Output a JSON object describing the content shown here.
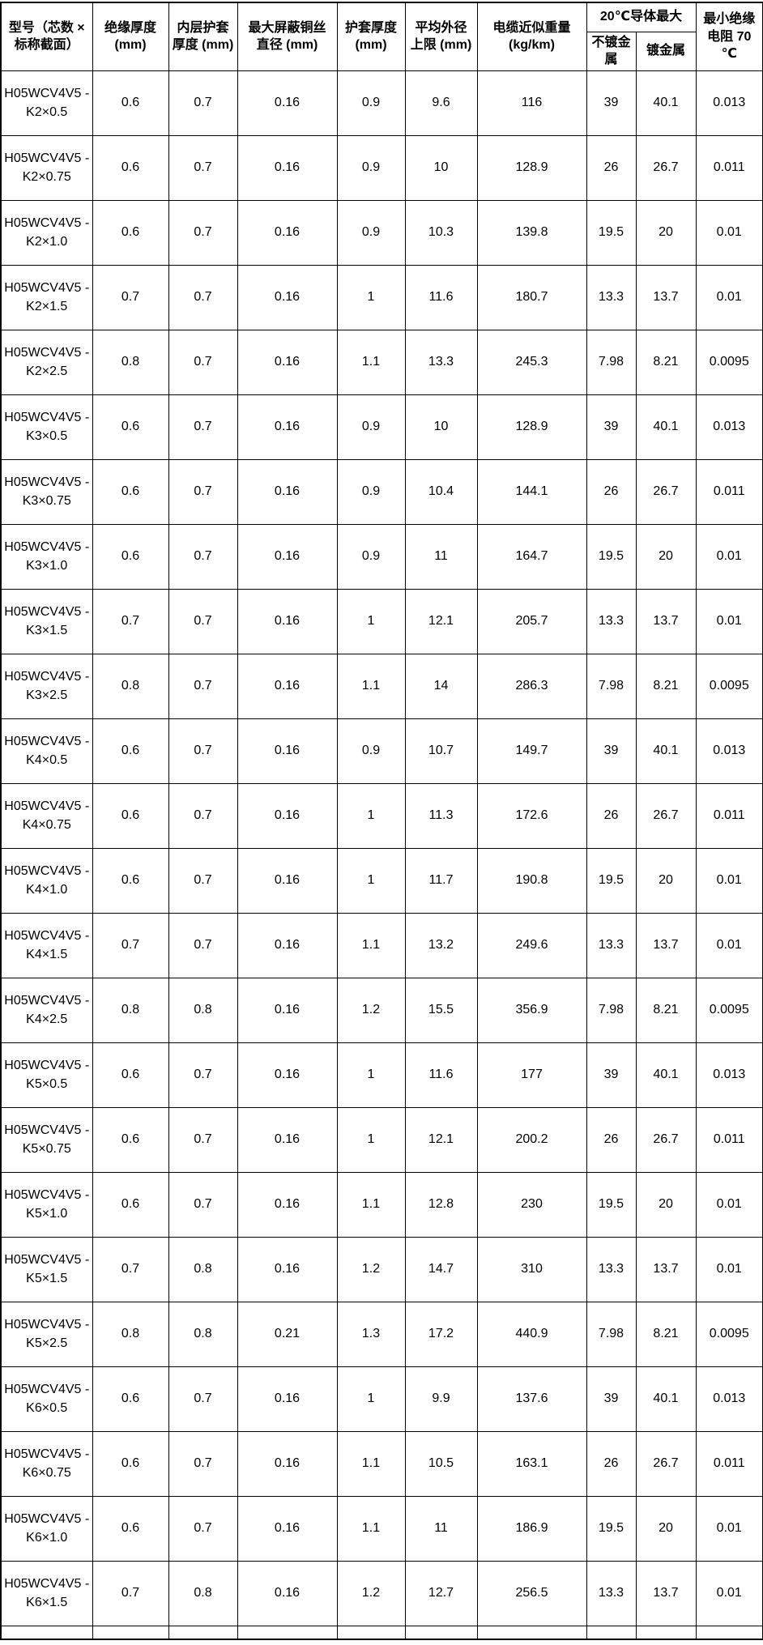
{
  "table": {
    "headers": {
      "model": "型号（芯数 × 标称截面）",
      "insulation": "绝缘厚度 (mm)",
      "inner_sheath": "内层护套 厚度 (mm)",
      "max_shield_wire": "最大屏蔽铜丝 直径 (mm)",
      "sheath": "护套厚度 (mm)",
      "avg_od": "平均外径 上限 (mm)",
      "weight": "电缆近似重量 (kg/km)",
      "conductor_group": "20℃导体最大",
      "unplated": "不镀金属",
      "plated": "镀金属",
      "min_resistance": "最小绝缘 电阻 70 ℃"
    },
    "field_order": [
      "model",
      "insulation",
      "inner_sheath",
      "max_shield_wire",
      "sheath",
      "avg_od",
      "weight",
      "unplated",
      "plated",
      "min_resistance"
    ],
    "rows": [
      {
        "model": "H05WCV4V5 - K2×0.5",
        "insulation": "0.6",
        "inner_sheath": "0.7",
        "max_shield_wire": "0.16",
        "sheath": "0.9",
        "avg_od": "9.6",
        "weight": "116",
        "unplated": "39",
        "plated": "40.1",
        "min_resistance": "0.013"
      },
      {
        "model": "H05WCV4V5 - K2×0.75",
        "insulation": "0.6",
        "inner_sheath": "0.7",
        "max_shield_wire": "0.16",
        "sheath": "0.9",
        "avg_od": "10",
        "weight": "128.9",
        "unplated": "26",
        "plated": "26.7",
        "min_resistance": "0.011"
      },
      {
        "model": "H05WCV4V5 - K2×1.0",
        "insulation": "0.6",
        "inner_sheath": "0.7",
        "max_shield_wire": "0.16",
        "sheath": "0.9",
        "avg_od": "10.3",
        "weight": "139.8",
        "unplated": "19.5",
        "plated": "20",
        "min_resistance": "0.01"
      },
      {
        "model": "H05WCV4V5 - K2×1.5",
        "insulation": "0.7",
        "inner_sheath": "0.7",
        "max_shield_wire": "0.16",
        "sheath": "1",
        "avg_od": "11.6",
        "weight": "180.7",
        "unplated": "13.3",
        "plated": "13.7",
        "min_resistance": "0.01"
      },
      {
        "model": "H05WCV4V5 - K2×2.5",
        "insulation": "0.8",
        "inner_sheath": "0.7",
        "max_shield_wire": "0.16",
        "sheath": "1.1",
        "avg_od": "13.3",
        "weight": "245.3",
        "unplated": "7.98",
        "plated": "8.21",
        "min_resistance": "0.0095"
      },
      {
        "model": "H05WCV4V5 - K3×0.5",
        "insulation": "0.6",
        "inner_sheath": "0.7",
        "max_shield_wire": "0.16",
        "sheath": "0.9",
        "avg_od": "10",
        "weight": "128.9",
        "unplated": "39",
        "plated": "40.1",
        "min_resistance": "0.013"
      },
      {
        "model": "H05WCV4V5 - K3×0.75",
        "insulation": "0.6",
        "inner_sheath": "0.7",
        "max_shield_wire": "0.16",
        "sheath": "0.9",
        "avg_od": "10.4",
        "weight": "144.1",
        "unplated": "26",
        "plated": "26.7",
        "min_resistance": "0.011"
      },
      {
        "model": "H05WCV4V5 - K3×1.0",
        "insulation": "0.6",
        "inner_sheath": "0.7",
        "max_shield_wire": "0.16",
        "sheath": "0.9",
        "avg_od": "11",
        "weight": "164.7",
        "unplated": "19.5",
        "plated": "20",
        "min_resistance": "0.01"
      },
      {
        "model": "H05WCV4V5 - K3×1.5",
        "insulation": "0.7",
        "inner_sheath": "0.7",
        "max_shield_wire": "0.16",
        "sheath": "1",
        "avg_od": "12.1",
        "weight": "205.7",
        "unplated": "13.3",
        "plated": "13.7",
        "min_resistance": "0.01"
      },
      {
        "model": "H05WCV4V5 - K3×2.5",
        "insulation": "0.8",
        "inner_sheath": "0.7",
        "max_shield_wire": "0.16",
        "sheath": "1.1",
        "avg_od": "14",
        "weight": "286.3",
        "unplated": "7.98",
        "plated": "8.21",
        "min_resistance": "0.0095"
      },
      {
        "model": "H05WCV4V5 - K4×0.5",
        "insulation": "0.6",
        "inner_sheath": "0.7",
        "max_shield_wire": "0.16",
        "sheath": "0.9",
        "avg_od": "10.7",
        "weight": "149.7",
        "unplated": "39",
        "plated": "40.1",
        "min_resistance": "0.013"
      },
      {
        "model": "H05WCV4V5 - K4×0.75",
        "insulation": "0.6",
        "inner_sheath": "0.7",
        "max_shield_wire": "0.16",
        "sheath": "1",
        "avg_od": "11.3",
        "weight": "172.6",
        "unplated": "26",
        "plated": "26.7",
        "min_resistance": "0.011"
      },
      {
        "model": "H05WCV4V5 - K4×1.0",
        "insulation": "0.6",
        "inner_sheath": "0.7",
        "max_shield_wire": "0.16",
        "sheath": "1",
        "avg_od": "11.7",
        "weight": "190.8",
        "unplated": "19.5",
        "plated": "20",
        "min_resistance": "0.01"
      },
      {
        "model": "H05WCV4V5 - K4×1.5",
        "insulation": "0.7",
        "inner_sheath": "0.7",
        "max_shield_wire": "0.16",
        "sheath": "1.1",
        "avg_od": "13.2",
        "weight": "249.6",
        "unplated": "13.3",
        "plated": "13.7",
        "min_resistance": "0.01"
      },
      {
        "model": "H05WCV4V5 - K4×2.5",
        "insulation": "0.8",
        "inner_sheath": "0.8",
        "max_shield_wire": "0.16",
        "sheath": "1.2",
        "avg_od": "15.5",
        "weight": "356.9",
        "unplated": "7.98",
        "plated": "8.21",
        "min_resistance": "0.0095"
      },
      {
        "model": "H05WCV4V5 - K5×0.5",
        "insulation": "0.6",
        "inner_sheath": "0.7",
        "max_shield_wire": "0.16",
        "sheath": "1",
        "avg_od": "11.6",
        "weight": "177",
        "unplated": "39",
        "plated": "40.1",
        "min_resistance": "0.013"
      },
      {
        "model": "H05WCV4V5 - K5×0.75",
        "insulation": "0.6",
        "inner_sheath": "0.7",
        "max_shield_wire": "0.16",
        "sheath": "1",
        "avg_od": "12.1",
        "weight": "200.2",
        "unplated": "26",
        "plated": "26.7",
        "min_resistance": "0.011"
      },
      {
        "model": "H05WCV4V5 - K5×1.0",
        "insulation": "0.6",
        "inner_sheath": "0.7",
        "max_shield_wire": "0.16",
        "sheath": "1.1",
        "avg_od": "12.8",
        "weight": "230",
        "unplated": "19.5",
        "plated": "20",
        "min_resistance": "0.01"
      },
      {
        "model": "H05WCV4V5 - K5×1.5",
        "insulation": "0.7",
        "inner_sheath": "0.8",
        "max_shield_wire": "0.16",
        "sheath": "1.2",
        "avg_od": "14.7",
        "weight": "310",
        "unplated": "13.3",
        "plated": "13.7",
        "min_resistance": "0.01"
      },
      {
        "model": "H05WCV4V5 - K5×2.5",
        "insulation": "0.8",
        "inner_sheath": "0.8",
        "max_shield_wire": "0.21",
        "sheath": "1.3",
        "avg_od": "17.2",
        "weight": "440.9",
        "unplated": "7.98",
        "plated": "8.21",
        "min_resistance": "0.0095"
      },
      {
        "model": "H05WCV4V5 - K6×0.5",
        "insulation": "0.6",
        "inner_sheath": "0.7",
        "max_shield_wire": "0.16",
        "sheath": "1",
        "avg_od": "9.9",
        "weight": "137.6",
        "unplated": "39",
        "plated": "40.1",
        "min_resistance": "0.013"
      },
      {
        "model": "H05WCV4V5 - K6×0.75",
        "insulation": "0.6",
        "inner_sheath": "0.7",
        "max_shield_wire": "0.16",
        "sheath": "1.1",
        "avg_od": "10.5",
        "weight": "163.1",
        "unplated": "26",
        "plated": "26.7",
        "min_resistance": "0.011"
      },
      {
        "model": "H05WCV4V5 - K6×1.0",
        "insulation": "0.6",
        "inner_sheath": "0.7",
        "max_shield_wire": "0.16",
        "sheath": "1.1",
        "avg_od": "11",
        "weight": "186.9",
        "unplated": "19.5",
        "plated": "20",
        "min_resistance": "0.01"
      },
      {
        "model": "H05WCV4V5 - K6×1.5",
        "insulation": "0.7",
        "inner_sheath": "0.8",
        "max_shield_wire": "0.16",
        "sheath": "1.2",
        "avg_od": "12.7",
        "weight": "256.5",
        "unplated": "13.3",
        "plated": "13.7",
        "min_resistance": "0.01"
      }
    ]
  }
}
